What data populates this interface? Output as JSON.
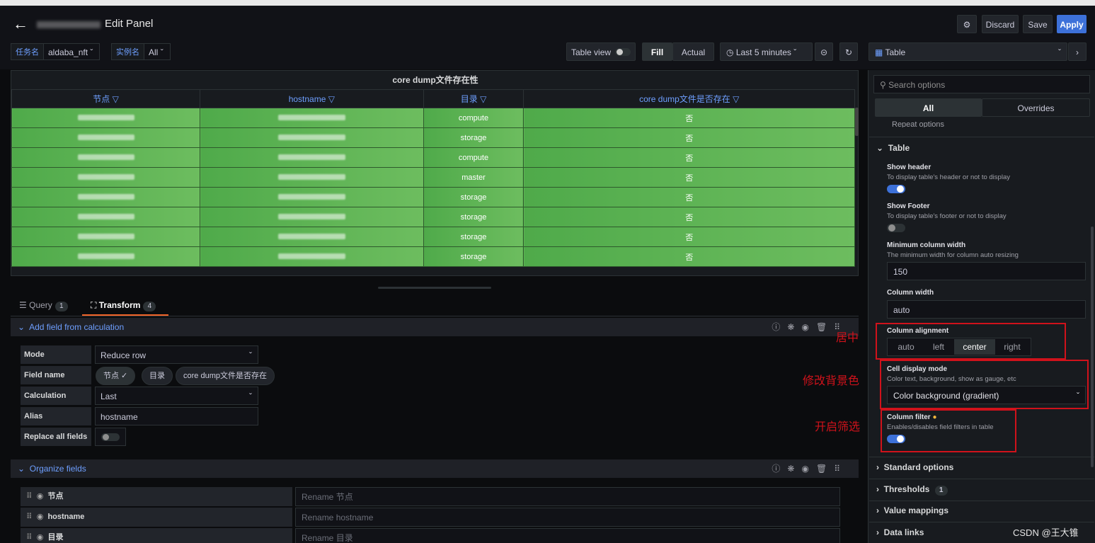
{
  "header": {
    "title": "Edit Panel",
    "discard_label": "Discard",
    "save_label": "Save",
    "apply_label": "Apply"
  },
  "variables": {
    "task_label": "任务名",
    "task_value": "aldaba_nft",
    "instance_label": "实例名",
    "instance_value": "All"
  },
  "toolbar": {
    "table_view_label": "Table view",
    "fill_label": "Fill",
    "actual_label": "Actual",
    "time_range": "Last 5 minutes",
    "viz_label": "Table"
  },
  "panel": {
    "title": "core dump文件存在性",
    "columns": [
      "节点",
      "hostname",
      "目录",
      "core dump文件是否存在"
    ],
    "rows": [
      {
        "dir": "compute",
        "exists": "否"
      },
      {
        "dir": "storage",
        "exists": "否"
      },
      {
        "dir": "compute",
        "exists": "否"
      },
      {
        "dir": "master",
        "exists": "否"
      },
      {
        "dir": "storage",
        "exists": "否"
      },
      {
        "dir": "storage",
        "exists": "否"
      },
      {
        "dir": "storage",
        "exists": "否"
      },
      {
        "dir": "storage",
        "exists": "否"
      }
    ],
    "cell_color_start": "#4faa4a",
    "cell_color_end": "#6dbd5f"
  },
  "tabs": {
    "query_label": "Query",
    "query_count": "1",
    "transform_label": "Transform",
    "transform_count": "4"
  },
  "calc": {
    "title": "Add field from calculation",
    "mode_label": "Mode",
    "mode_value": "Reduce row",
    "field_name_label": "Field name",
    "fields": [
      "节点 ✓",
      "目录",
      "core dump文件是否存在"
    ],
    "calculation_label": "Calculation",
    "calculation_value": "Last",
    "alias_label": "Alias",
    "alias_value": "hostname",
    "replace_label": "Replace all fields"
  },
  "organize": {
    "title": "Organize fields",
    "rows": [
      {
        "name": "节点",
        "placeholder": "Rename 节点"
      },
      {
        "name": "hostname",
        "placeholder": "Rename hostname"
      },
      {
        "name": "目录",
        "placeholder": "Rename 目录"
      }
    ]
  },
  "options": {
    "search_placeholder": "Search options",
    "all_label": "All",
    "overrides_label": "Overrides",
    "repeat_label": "Repeat options",
    "table_section": "Table",
    "show_header_label": "Show header",
    "show_header_desc": "To display table's header or not to display",
    "show_footer_label": "Show Footer",
    "show_footer_desc": "To display table's footer or not to display",
    "min_width_label": "Minimum column width",
    "min_width_desc": "The minimum width for column auto resizing",
    "min_width_value": "150",
    "col_width_label": "Column width",
    "col_width_value": "auto",
    "alignment_label": "Column alignment",
    "alignment_options": [
      "auto",
      "left",
      "center",
      "right"
    ],
    "cell_mode_label": "Cell display mode",
    "cell_mode_desc": "Color text, background, show as gauge, etc",
    "cell_mode_value": "Color background (gradient)",
    "filter_label": "Column filter",
    "filter_desc": "Enables/disables field filters in table",
    "standard_label": "Standard options",
    "thresholds_label": "Thresholds",
    "thresholds_count": "1",
    "value_mappings_label": "Value mappings",
    "data_links_label": "Data links"
  },
  "annotations": {
    "center": "居中",
    "background": "修改背景色",
    "filter": "开启筛选"
  },
  "watermark": "CSDN @王大锥"
}
